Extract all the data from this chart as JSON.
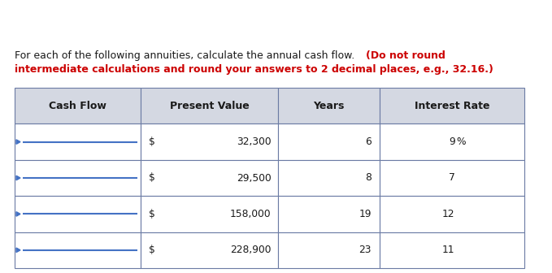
{
  "line1_black": "For each of the following annuities, calculate the annual cash flow. ",
  "line1_red": "(Do not round",
  "line2_red": "intermediate calculations and round your answers to 2 decimal places, e.g., 32.16.)",
  "col_headers": [
    "Cash Flow",
    "Present Value",
    "Years",
    "Interest Rate"
  ],
  "pv_data": [
    "32,300",
    "29,500",
    "158,000",
    "228,900"
  ],
  "years_data": [
    "6",
    "8",
    "19",
    "23"
  ],
  "rate_nums": [
    "9",
    "7",
    "12",
    "11"
  ],
  "rate_pct": [
    "%",
    "",
    "",
    ""
  ],
  "header_bg": "#d4d8e2",
  "table_border_color": "#6b7ba4",
  "arrow_color": "#4472c4",
  "text_color_normal": "#1a1a1a",
  "text_color_red": "#cc0000",
  "bg_color": "#ffffff",
  "title_fontsize": 9.0,
  "table_fontsize": 8.8,
  "header_fontsize": 9.0
}
